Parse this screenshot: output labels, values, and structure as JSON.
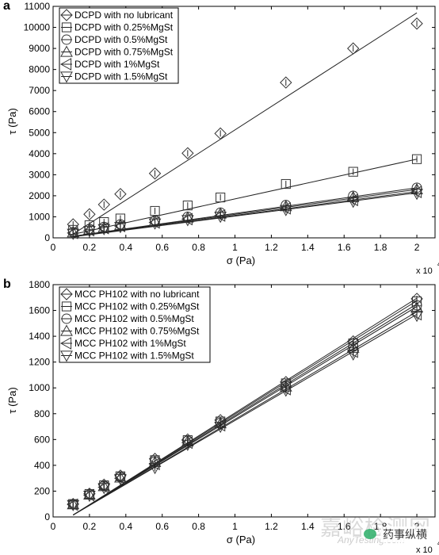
{
  "chart_data": [
    {
      "panel_label": "a",
      "type": "scatter",
      "xlabel": "σ (Pa)",
      "ylabel": "τ (Pa)",
      "x_multiplier": "x 10",
      "x_multiplier_exp": "4",
      "xlim": [
        0,
        2.1
      ],
      "ylim": [
        0,
        11000
      ],
      "xticks": [
        0,
        0.2,
        0.4,
        0.6,
        0.8,
        1,
        1.2,
        1.4,
        1.6,
        1.8,
        2
      ],
      "yticks": [
        0,
        1000,
        2000,
        3000,
        4000,
        5000,
        6000,
        7000,
        8000,
        9000,
        10000,
        11000
      ],
      "grid": false,
      "legend_position": "top-left",
      "x": [
        0.11,
        0.2,
        0.28,
        0.37,
        0.56,
        0.74,
        0.92,
        1.28,
        1.65,
        2.0
      ],
      "series": [
        {
          "name": "DCPD with no lubricant",
          "marker": "diamond",
          "values": [
            640,
            1120,
            1580,
            2080,
            3060,
            4020,
            4960,
            7380,
            9000,
            10180
          ],
          "fit": [
            180,
            10690
          ]
        },
        {
          "name": "DCPD with 0.25%MgSt",
          "marker": "square",
          "values": [
            380,
            600,
            750,
            920,
            1280,
            1540,
            1920,
            2560,
            3140,
            3740
          ],
          "fit": [
            170,
            3740
          ]
        },
        {
          "name": "DCPD with 0.5%MgSt",
          "marker": "circle",
          "values": [
            270,
            420,
            520,
            640,
            820,
            1000,
            1200,
            1560,
            2000,
            2380
          ],
          "fit": [
            80,
            2380
          ]
        },
        {
          "name": "DCPD with 0.75%MgSt",
          "marker": "triangle-up",
          "values": [
            260,
            400,
            500,
            610,
            790,
            960,
            1150,
            1500,
            1930,
            2300
          ],
          "fit": [
            70,
            2300
          ]
        },
        {
          "name": "DCPD with 1%MgSt",
          "marker": "triangle-left",
          "values": [
            230,
            360,
            460,
            560,
            730,
            890,
            1060,
            1400,
            1800,
            2180
          ],
          "fit": [
            60,
            2200
          ]
        },
        {
          "name": "DCPD with 1.5%MgSt",
          "marker": "triangle-down",
          "values": [
            200,
            330,
            420,
            520,
            690,
            850,
            1010,
            1330,
            1720,
            2100
          ],
          "fit": [
            50,
            2140
          ]
        }
      ]
    },
    {
      "panel_label": "b",
      "type": "scatter",
      "xlabel": "σ (Pa)",
      "ylabel": "τ (Pa)",
      "x_multiplier": "x 10",
      "x_multiplier_exp": "4",
      "xlim": [
        0,
        2.1
      ],
      "ylim": [
        0,
        1800
      ],
      "xticks": [
        0,
        0.2,
        0.4,
        0.6,
        0.8,
        1,
        1.2,
        1.4,
        1.6,
        1.8,
        2
      ],
      "yticks": [
        0,
        200,
        400,
        600,
        800,
        1000,
        1200,
        1400,
        1600,
        1800
      ],
      "grid": false,
      "legend_position": "top-left",
      "x": [
        0.11,
        0.2,
        0.28,
        0.37,
        0.56,
        0.74,
        0.92,
        1.28,
        1.65,
        2.0
      ],
      "series": [
        {
          "name": "MCC PH102 with no lubricant",
          "marker": "diamond",
          "values": [
            100,
            180,
            250,
            320,
            450,
            600,
            750,
            1045,
            1360,
            1690
          ],
          "fit": [
            15,
            1695
          ]
        },
        {
          "name": "MCC PH102 with 0.25%MgSt",
          "marker": "square",
          "values": [
            100,
            178,
            245,
            315,
            440,
            595,
            740,
            1035,
            1345,
            1670
          ],
          "fit": [
            15,
            1675
          ]
        },
        {
          "name": "MCC PH102 with 0.5%MgSt",
          "marker": "circle",
          "values": [
            98,
            175,
            240,
            310,
            430,
            590,
            730,
            1020,
            1320,
            1640
          ],
          "fit": [
            15,
            1650
          ]
        },
        {
          "name": "MCC PH102 with 0.75%MgSt",
          "marker": "triangle-up",
          "values": [
            97,
            173,
            238,
            305,
            425,
            585,
            725,
            1010,
            1310,
            1620
          ],
          "fit": [
            15,
            1630
          ]
        },
        {
          "name": "MCC PH102 with 1%MgSt",
          "marker": "triangle-left",
          "values": [
            95,
            168,
            230,
            300,
            410,
            575,
            710,
            990,
            1280,
            1570
          ],
          "fit": [
            15,
            1590
          ]
        },
        {
          "name": "MCC PH102 with 1.5%MgSt",
          "marker": "triangle-down",
          "values": [
            93,
            165,
            225,
            295,
            380,
            560,
            700,
            980,
            1260,
            1560
          ],
          "fit": [
            15,
            1570
          ]
        }
      ]
    }
  ],
  "watermark": {
    "main": "嘉峪检测网",
    "sub": "AnyTesting.com",
    "badge": "药事纵横"
  }
}
